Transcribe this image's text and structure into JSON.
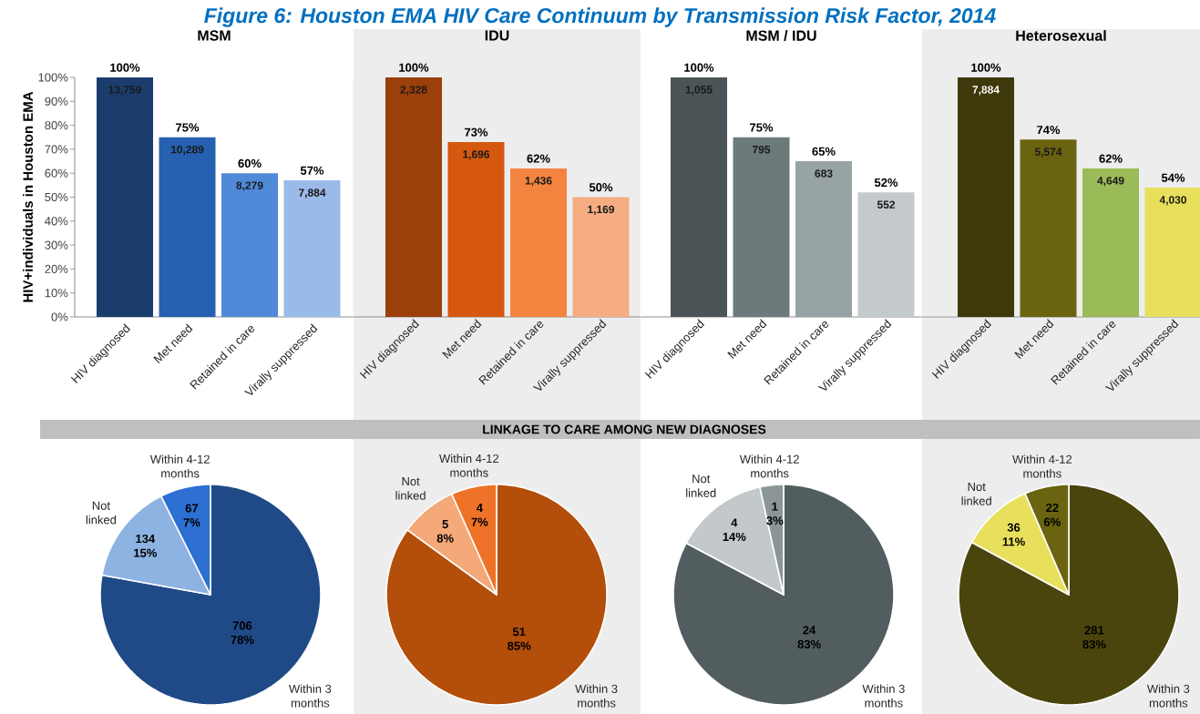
{
  "chart_data": [
    {
      "type": "other",
      "title": "Figure 6: Houston EMA HIV Care Continuum by Transmission Risk Factor, 2014"
    },
    {
      "type": "bar",
      "title": "MSM",
      "ylabel": "HIV+individuals in Houston EMA",
      "categories": [
        "HIV diagnosed",
        "Met need",
        "Retained in care",
        "Virally suppressed"
      ],
      "values": [
        100,
        75,
        60,
        57
      ],
      "colors": [
        "#1b3d6e",
        "#2660b0",
        "#5089d8",
        "#9abbe9"
      ],
      "value_labels": [
        "100%",
        "75%",
        "60%",
        "57%"
      ],
      "annotations": [
        {
          "text": "13,759",
          "x": "HIV diagnosed",
          "y": 100
        },
        {
          "text": "10,289",
          "x": "Met need",
          "y": 75
        },
        {
          "text": "8,279",
          "x": "Retained in care",
          "y": 60
        },
        {
          "text": "7,884",
          "x": "Virally suppressed",
          "y": 57
        }
      ],
      "ylim": [
        0,
        100
      ],
      "yticks": [
        {
          "value": 0,
          "label": "0%"
        },
        {
          "value": 10,
          "label": "10%"
        },
        {
          "value": 20,
          "label": "20%"
        },
        {
          "value": 30,
          "label": "30%"
        },
        {
          "value": 40,
          "label": "40%"
        },
        {
          "value": 50,
          "label": "50%"
        },
        {
          "value": 60,
          "label": "60%"
        },
        {
          "value": 70,
          "label": "70%"
        },
        {
          "value": 80,
          "label": "80%"
        },
        {
          "value": 90,
          "label": "90%"
        },
        {
          "value": 100,
          "label": "100%"
        }
      ]
    },
    {
      "type": "bar",
      "title": "IDU",
      "categories": [
        "HIV diagnosed",
        "Met need",
        "Retained in care",
        "Virally suppressed"
      ],
      "values": [
        100,
        73,
        62,
        50
      ],
      "colors": [
        "#9b3f0b",
        "#d6580f",
        "#f3843f",
        "#f5ad81"
      ],
      "value_labels": [
        "100%",
        "73%",
        "62%",
        "50%"
      ],
      "annotations": [
        {
          "text": "2,328",
          "x": "HIV diagnosed",
          "y": 100
        },
        {
          "text": "1,696",
          "x": "Met need",
          "y": 73
        },
        {
          "text": "1,436",
          "x": "Retained in care",
          "y": 62
        },
        {
          "text": "1,169",
          "x": "Virally suppressed",
          "y": 50
        }
      ],
      "ylim": [
        0,
        100
      ],
      "tick_labels": "x"
    },
    {
      "type": "bar",
      "title": "MSM / IDU",
      "categories": [
        "HIV diagnosed",
        "Met need",
        "Retained in care",
        "Virally suppressed"
      ],
      "values": [
        100,
        75,
        65,
        52
      ],
      "colors": [
        "#4b5457",
        "#6c7a7b",
        "#98a3a5",
        "#c4c9cb"
      ],
      "value_labels": [
        "100%",
        "75%",
        "65%",
        "52%"
      ],
      "annotations": [
        {
          "text": "1,055",
          "x": "HIV diagnosed",
          "y": 100
        },
        {
          "text": "795",
          "x": "Met need",
          "y": 75
        },
        {
          "text": "683",
          "x": "Retained in care",
          "y": 65
        },
        {
          "text": "552",
          "x": "Virally suppressed",
          "y": 52
        }
      ],
      "ylim": [
        0,
        100
      ],
      "tick_labels": "x"
    },
    {
      "type": "bar",
      "title": "Heterosexual",
      "categories": [
        "HIV diagnosed",
        "Met need",
        "Retained in care",
        "Virally suppressed"
      ],
      "values": [
        100,
        74,
        62,
        54
      ],
      "colors": [
        "#3d390b",
        "#6a6310",
        "#9bbb59",
        "#e8e05c"
      ],
      "value_labels": [
        "100%",
        "74%",
        "62%",
        "54%"
      ],
      "annotations": [
        {
          "text": "7,884",
          "x": "HIV diagnosed",
          "y": 100
        },
        {
          "text": "5,574",
          "x": "Met need",
          "y": 74
        },
        {
          "text": "4,649",
          "x": "Retained in care",
          "y": 62
        },
        {
          "text": "4,030",
          "x": "Virally suppressed",
          "y": 54
        }
      ],
      "ylim": [
        0,
        100
      ],
      "tick_labels": "x"
    },
    {
      "type": "other",
      "title": "LINKAGE TO CARE AMONG NEW DIAGNOSES"
    },
    {
      "type": "pie",
      "categories": [
        "Within 3 months",
        "Not linked",
        "Within 4-12 months"
      ],
      "values": [
        706,
        134,
        67
      ],
      "colors": [
        "#1f4a87",
        "#8db3e2",
        "#2d6fd3"
      ],
      "value_labels": [
        "706 78%",
        "134 15%",
        "67 7%"
      ]
    },
    {
      "type": "pie",
      "categories": [
        "Within 3 months",
        "Not linked",
        "Within 4-12 months"
      ],
      "values": [
        51,
        5,
        4
      ],
      "colors": [
        "#b34e0b",
        "#f5a878",
        "#ee7328"
      ],
      "value_labels": [
        "51 85%",
        "5 8%",
        "4 7%"
      ]
    },
    {
      "type": "pie",
      "categories": [
        "Within 3 months",
        "Not linked",
        "Within 4-12 months"
      ],
      "values": [
        24,
        4,
        1
      ],
      "colors": [
        "#525d60",
        "#c3c8ca",
        "#8a9698"
      ],
      "value_labels": [
        "24 83%",
        "4 14%",
        "1 3%"
      ]
    },
    {
      "type": "pie",
      "categories": [
        "Within 3 months",
        "Not linked",
        "Within 4-12 months"
      ],
      "values": [
        281,
        36,
        22
      ],
      "colors": [
        "#4a450d",
        "#e8e05c",
        "#6a6310"
      ],
      "value_labels": [
        "281 83%",
        "36 11%",
        "22 6%"
      ]
    }
  ]
}
